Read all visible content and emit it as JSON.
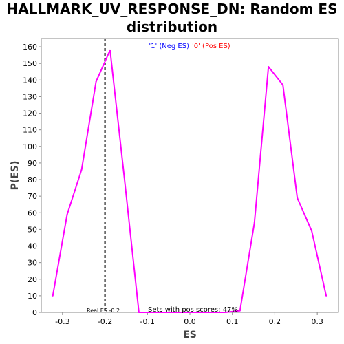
{
  "chart_data": {
    "type": "line",
    "title_line1": "HALLMARK_UV_RESPONSE_DN: Random ES",
    "title_line2": "distribution",
    "xlabel": "ES",
    "ylabel": "P(ES)",
    "xlim": [
      -0.35,
      0.35
    ],
    "ylim": [
      0,
      165
    ],
    "x_ticks": [
      -0.3,
      -0.2,
      -0.1,
      0.0,
      0.1,
      0.2,
      0.3
    ],
    "x_tick_labels": [
      "-0.3",
      "-0.2",
      "-0.1",
      "0.0",
      "0.1",
      "0.2",
      "0.3"
    ],
    "y_ticks": [
      0,
      10,
      20,
      30,
      40,
      50,
      60,
      70,
      80,
      90,
      100,
      110,
      120,
      130,
      140,
      150,
      160
    ],
    "y_tick_labels": [
      "0",
      "10",
      "20",
      "30",
      "40",
      "50",
      "60",
      "70",
      "80",
      "90",
      "100",
      "110",
      "120",
      "130",
      "140",
      "150",
      "160"
    ],
    "legend": {
      "neg_label": "'1' (Neg ES)",
      "pos_label": "'0' (Pos ES)",
      "neg_color": "#0000ff",
      "pos_color": "#ff0000",
      "placement": "top-center"
    },
    "series": [
      {
        "color": "#ff00ff",
        "x": [
          -0.323,
          -0.289,
          -0.255,
          -0.221,
          -0.188,
          -0.154,
          -0.12,
          -0.086,
          -0.052,
          -0.018,
          0.016,
          0.05,
          0.084,
          0.118,
          0.152,
          0.185,
          0.219,
          0.253,
          0.287,
          0.321
        ],
        "y": [
          10,
          59,
          86,
          139,
          158,
          80,
          0,
          0,
          0,
          0,
          0,
          0,
          0,
          1,
          54,
          148,
          137,
          69,
          49,
          10
        ]
      }
    ],
    "real_es": {
      "value": -0.2,
      "label": "Real ES -0.2",
      "style": "dashed",
      "color": "#000000"
    },
    "pos_scores_text": "Sets with pos scores: 47%",
    "grid": false
  }
}
